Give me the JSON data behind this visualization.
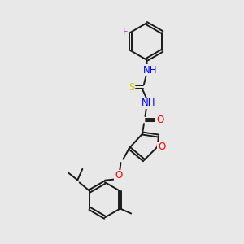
{
  "bg_color": "#e8e8e8",
  "bond_color": "#1a1a1a",
  "N_color": "#0000ff",
  "O_color": "#ff0000",
  "S_color": "#cccc00",
  "F_color": "#cc44cc",
  "bond_width": 1.4,
  "font_size": 8.5,
  "fig_w": 3.0,
  "fig_h": 3.0,
  "dpi": 100,
  "xlim": [
    0,
    10
  ],
  "ylim": [
    0,
    10
  ]
}
